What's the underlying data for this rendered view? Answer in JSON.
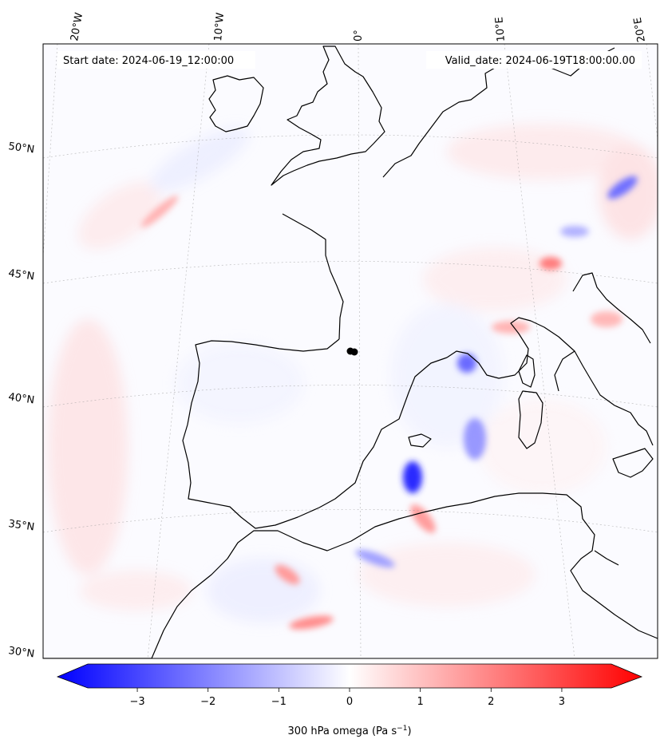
{
  "map": {
    "start_label": "Start date: 2024-06-19_12:00:00",
    "valid_label": "Valid_date: 2024-06-19T18:00:00.00",
    "lon_labels": [
      "20°W",
      "10°W",
      "0°",
      "10°E",
      "20°E"
    ],
    "lat_labels": [
      "50°N",
      "45°N",
      "40°N",
      "35°N",
      "30°N"
    ]
  },
  "colorbar": {
    "ticks": [
      "−3",
      "−2",
      "−1",
      "0",
      "1",
      "2",
      "3"
    ],
    "label": "300 hPa omega (Pa s",
    "label_sup": "−1",
    "label_close": ")",
    "vmin": -3.7,
    "vmax": 3.7,
    "colormap": [
      "#0000ff",
      "#ffffff",
      "#ff0000"
    ]
  },
  "colors": {
    "coast": "#000000",
    "grid": "#999999",
    "ascent": "#0000ff",
    "descent": "#ff0000"
  }
}
